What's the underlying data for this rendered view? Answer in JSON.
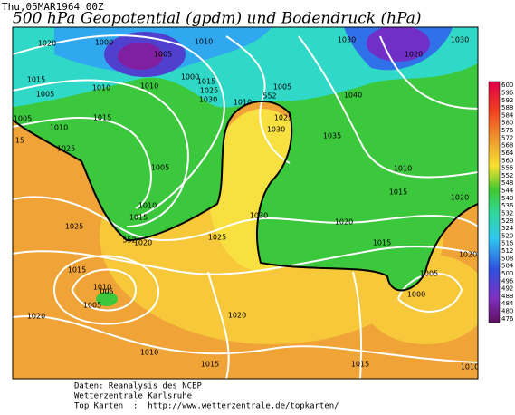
{
  "header": {
    "date": "Thu,05MAR1964 00Z",
    "title": "500 hPa Geopotential (gpdm) und Bodendruck (hPa)"
  },
  "colorbar": {
    "labels": [
      "600",
      "596",
      "592",
      "588",
      "584",
      "580",
      "576",
      "572",
      "568",
      "564",
      "560",
      "556",
      "552",
      "548",
      "544",
      "540",
      "536",
      "532",
      "528",
      "524",
      "520",
      "516",
      "512",
      "508",
      "504",
      "500",
      "496",
      "492",
      "488",
      "484",
      "480",
      "476"
    ]
  },
  "map": {
    "isobar_labels": [
      "1020",
      "1000",
      "1005",
      "1010",
      "1030",
      "1030",
      "1020",
      "1015",
      "1010",
      "1000",
      "1010",
      "1005",
      "1015",
      "1025",
      "1005",
      "1030",
      "1040",
      "552",
      "1010",
      "1005",
      "1015",
      "1025",
      "1010",
      "1030",
      "1035",
      "15",
      "1025",
      "1005",
      "1010",
      "1015",
      "1020",
      "1010",
      "1030",
      "1015",
      "1025",
      "1020",
      "552",
      "1020",
      "1025",
      "1015",
      "1020",
      "1015",
      "1005",
      "1010",
      "005",
      "1000",
      "1005",
      "1020",
      "1020",
      "1010",
      "1015",
      "1015",
      "1010"
    ]
  },
  "footer": {
    "lines": [
      "Daten: Reanalysis des NCEP",
      "Wetterzentrale Karlsruhe",
      "Top Karten  :  http://www.wetterzentrale.de/topkarten/"
    ]
  }
}
